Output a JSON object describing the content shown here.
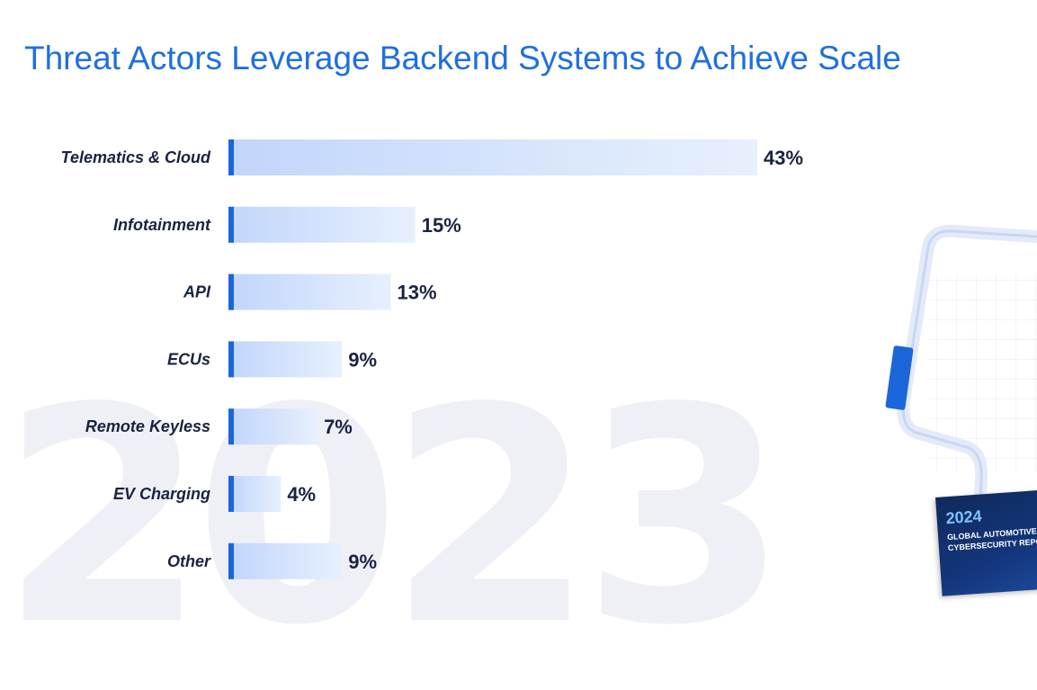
{
  "watermark": "2023",
  "title": "Threat Actors Leverage Backend Systems to Achieve Scale",
  "chart_data": {
    "type": "bar",
    "orientation": "horizontal",
    "title": "Threat Actors Leverage Backend Systems to Achieve Scale",
    "categories": [
      "Telematics & Cloud",
      "Infotainment",
      "API",
      "ECUs",
      "Remote Keyless",
      "EV Charging",
      "Other"
    ],
    "values": [
      43,
      15,
      13,
      9,
      7,
      4,
      9
    ],
    "value_labels": [
      "43%",
      "15%",
      "13%",
      "9%",
      "7%",
      "4%",
      "9%"
    ],
    "unit": "%",
    "xlim": [
      0,
      43
    ],
    "grid": false,
    "legend": "none",
    "colors": {
      "bar_start": "#c2d6fb",
      "bar_end": "#e7f0fd",
      "accent": "#1c66d9",
      "text": "#1a2340"
    }
  },
  "report_cover": {
    "year": "2024",
    "line1": "GLOBAL AUTOMOTIVE",
    "line2": "CYBERSECURITY REPORT"
  }
}
